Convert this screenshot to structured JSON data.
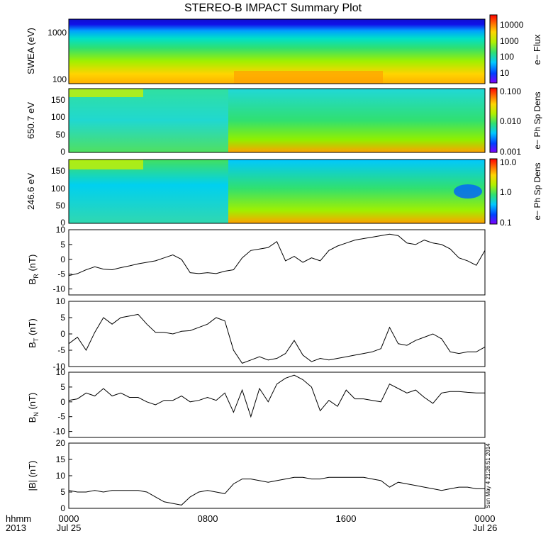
{
  "title": "STEREO-B IMPACT Summary Plot",
  "footer": {
    "left_label_1": "hhmm",
    "left_label_2": "2013",
    "tick_times": [
      "0000",
      "0800",
      "1600",
      "0000"
    ],
    "tick_dates": [
      "Jul 25",
      "",
      "",
      "Jul 26"
    ],
    "timestamp": "Sun May  4 21:26:51 2014"
  },
  "colors": {
    "background": "#ffffff",
    "line": "#000000",
    "colormap": [
      "#7f00ff",
      "#0040ff",
      "#00c8ff",
      "#30e070",
      "#b0f000",
      "#ffd400",
      "#ff6a00",
      "#ff0000"
    ]
  },
  "chart_data": [
    {
      "type": "heatmap",
      "name": "swea",
      "ylabel": "SWEA (eV)",
      "yscale": "log",
      "yticks": [
        "1000",
        "100"
      ],
      "colorbar_label": "e− Flux",
      "colorbar_ticks": [
        "10000",
        "1000",
        "100",
        "10"
      ],
      "note": "Electron energy spectrum"
    },
    {
      "type": "heatmap",
      "name": "pad650",
      "ylabel": "650.7 eV",
      "yticks": [
        "150",
        "100",
        "50",
        "0"
      ],
      "ylim": [
        0,
        180
      ],
      "colorbar_label": "e− Ph Sp Dens",
      "colorbar_ticks": [
        "0.100",
        "0.010",
        "0.001"
      ]
    },
    {
      "type": "heatmap",
      "name": "pad246",
      "ylabel": "246.6 eV",
      "yticks": [
        "150",
        "100",
        "50",
        "0"
      ],
      "ylim": [
        0,
        180
      ],
      "colorbar_label": "e− Ph Sp Dens",
      "colorbar_ticks": [
        "10.0",
        "1.0",
        "0.1"
      ]
    },
    {
      "type": "line",
      "name": "BR",
      "ylabel_main": "B",
      "ylabel_sub": "R",
      "ylabel_unit": " (nT)",
      "ylim": [
        -12,
        10
      ],
      "yticks": [
        "10",
        "5",
        "0",
        "-5",
        "-10"
      ],
      "x_hours": [
        0,
        0.5,
        1,
        1.5,
        2,
        2.5,
        3,
        3.5,
        4,
        4.5,
        5,
        5.5,
        6,
        6.5,
        7,
        7.5,
        8,
        8.5,
        9,
        9.5,
        10,
        10.5,
        11,
        11.5,
        12,
        12.5,
        13,
        13.5,
        14,
        14.5,
        15,
        15.5,
        16,
        16.5,
        17,
        17.5,
        18,
        18.5,
        19,
        19.5,
        20,
        20.5,
        21,
        21.5,
        22,
        22.5,
        23,
        23.5,
        24
      ],
      "values": [
        -5.5,
        -4.8,
        -3.5,
        -2.5,
        -3.3,
        -3.5,
        -2.8,
        -2.2,
        -1.5,
        -1.0,
        -0.5,
        0.5,
        1.5,
        0.0,
        -4.5,
        -4.8,
        -4.5,
        -4.8,
        -4.0,
        -3.5,
        0.5,
        3.0,
        3.5,
        4.0,
        6.0,
        -0.5,
        1.0,
        -1.0,
        0.5,
        -0.5,
        3.0,
        4.5,
        5.5,
        6.5,
        7.0,
        7.5,
        8.0,
        8.5,
        8.0,
        5.5,
        5.0,
        6.5,
        5.5,
        5.0,
        3.5,
        0.5,
        -0.5,
        -2.0,
        3.0
      ]
    },
    {
      "type": "line",
      "name": "BT",
      "ylabel_main": "B",
      "ylabel_sub": "T",
      "ylabel_unit": " (nT)",
      "ylim": [
        -10,
        10
      ],
      "yticks": [
        "10",
        "5",
        "0",
        "-5",
        "-10"
      ],
      "x_hours": [
        0,
        0.5,
        1,
        1.5,
        2,
        2.5,
        3,
        3.5,
        4,
        4.5,
        5,
        5.5,
        6,
        6.5,
        7,
        7.5,
        8,
        8.5,
        9,
        9.5,
        10,
        10.5,
        11,
        11.5,
        12,
        12.5,
        13,
        13.5,
        14,
        14.5,
        15,
        15.5,
        16,
        16.5,
        17,
        17.5,
        18,
        18.5,
        19,
        19.5,
        20,
        20.5,
        21,
        21.5,
        22,
        22.5,
        23,
        23.5,
        24
      ],
      "values": [
        -3.0,
        -1.0,
        -5.0,
        0.5,
        5.0,
        3.0,
        5.0,
        5.5,
        6.0,
        3.0,
        0.5,
        0.5,
        0.0,
        0.8,
        1.0,
        2.0,
        3.0,
        5.0,
        4.0,
        -5.0,
        -9.0,
        -8.0,
        -7.0,
        -8.0,
        -7.5,
        -6.0,
        -2.0,
        -6.5,
        -8.5,
        -7.5,
        -8.0,
        -7.5,
        -7.0,
        -6.5,
        -6.0,
        -5.5,
        -4.5,
        2.0,
        -3.0,
        -3.5,
        -2.0,
        -1.0,
        0.0,
        -1.5,
        -5.5,
        -6.0,
        -5.5,
        -5.5,
        -4.0
      ]
    },
    {
      "type": "line",
      "name": "BN",
      "ylabel_main": "B",
      "ylabel_sub": "N",
      "ylabel_unit": " (nT)",
      "ylim": [
        -12,
        10
      ],
      "yticks": [
        "10",
        "5",
        "0",
        "-5",
        "-10"
      ],
      "x_hours": [
        0,
        0.5,
        1,
        1.5,
        2,
        2.5,
        3,
        3.5,
        4,
        4.5,
        5,
        5.5,
        6,
        6.5,
        7,
        7.5,
        8,
        8.5,
        9,
        9.5,
        10,
        10.5,
        11,
        11.5,
        12,
        12.5,
        13,
        13.5,
        14,
        14.5,
        15,
        15.5,
        16,
        16.5,
        17,
        17.5,
        18,
        18.5,
        19,
        19.5,
        20,
        20.5,
        21,
        21.5,
        22,
        22.5,
        23,
        23.5,
        24
      ],
      "values": [
        0.5,
        1.0,
        3.0,
        2.0,
        4.5,
        2.0,
        3.0,
        1.5,
        1.5,
        0.0,
        -1.0,
        0.5,
        0.5,
        2.0,
        0.0,
        0.5,
        1.5,
        0.5,
        3.0,
        -3.5,
        4.0,
        -5.0,
        4.5,
        0.0,
        6.0,
        8.0,
        9.0,
        7.5,
        5.0,
        -3.0,
        0.5,
        -1.5,
        4.0,
        1.0,
        1.0,
        0.5,
        0.0,
        6.0,
        4.5,
        3.0,
        4.0,
        1.5,
        -0.5,
        3.0,
        3.5,
        3.5,
        3.2,
        3.0,
        3.0
      ]
    },
    {
      "type": "line",
      "name": "Btot",
      "ylabel_main": "|B| (nT)",
      "ylim": [
        0,
        20
      ],
      "yticks": [
        "20",
        "15",
        "10",
        "5",
        "0"
      ],
      "x_hours": [
        0,
        0.5,
        1,
        1.5,
        2,
        2.5,
        3,
        3.5,
        4,
        4.5,
        5,
        5.5,
        6,
        6.5,
        7,
        7.5,
        8,
        8.5,
        9,
        9.5,
        10,
        10.5,
        11,
        11.5,
        12,
        12.5,
        13,
        13.5,
        14,
        14.5,
        15,
        15.5,
        16,
        16.5,
        17,
        17.5,
        18,
        18.5,
        19,
        19.5,
        20,
        20.5,
        21,
        21.5,
        22,
        22.5,
        23,
        23.5,
        24
      ],
      "values": [
        5.5,
        5.0,
        5.0,
        5.5,
        5.0,
        5.5,
        5.5,
        5.5,
        5.5,
        5.0,
        3.5,
        2.0,
        1.5,
        1.0,
        3.5,
        5.0,
        5.5,
        5.0,
        4.5,
        7.5,
        9.0,
        9.0,
        8.5,
        8.0,
        8.5,
        9.0,
        9.5,
        9.5,
        9.0,
        9.0,
        9.5,
        9.5,
        9.5,
        9.5,
        9.5,
        9.0,
        8.5,
        6.5,
        8.0,
        7.5,
        7.0,
        6.5,
        6.0,
        5.5,
        6.0,
        6.5,
        6.5,
        6.0,
        6.0
      ]
    }
  ]
}
